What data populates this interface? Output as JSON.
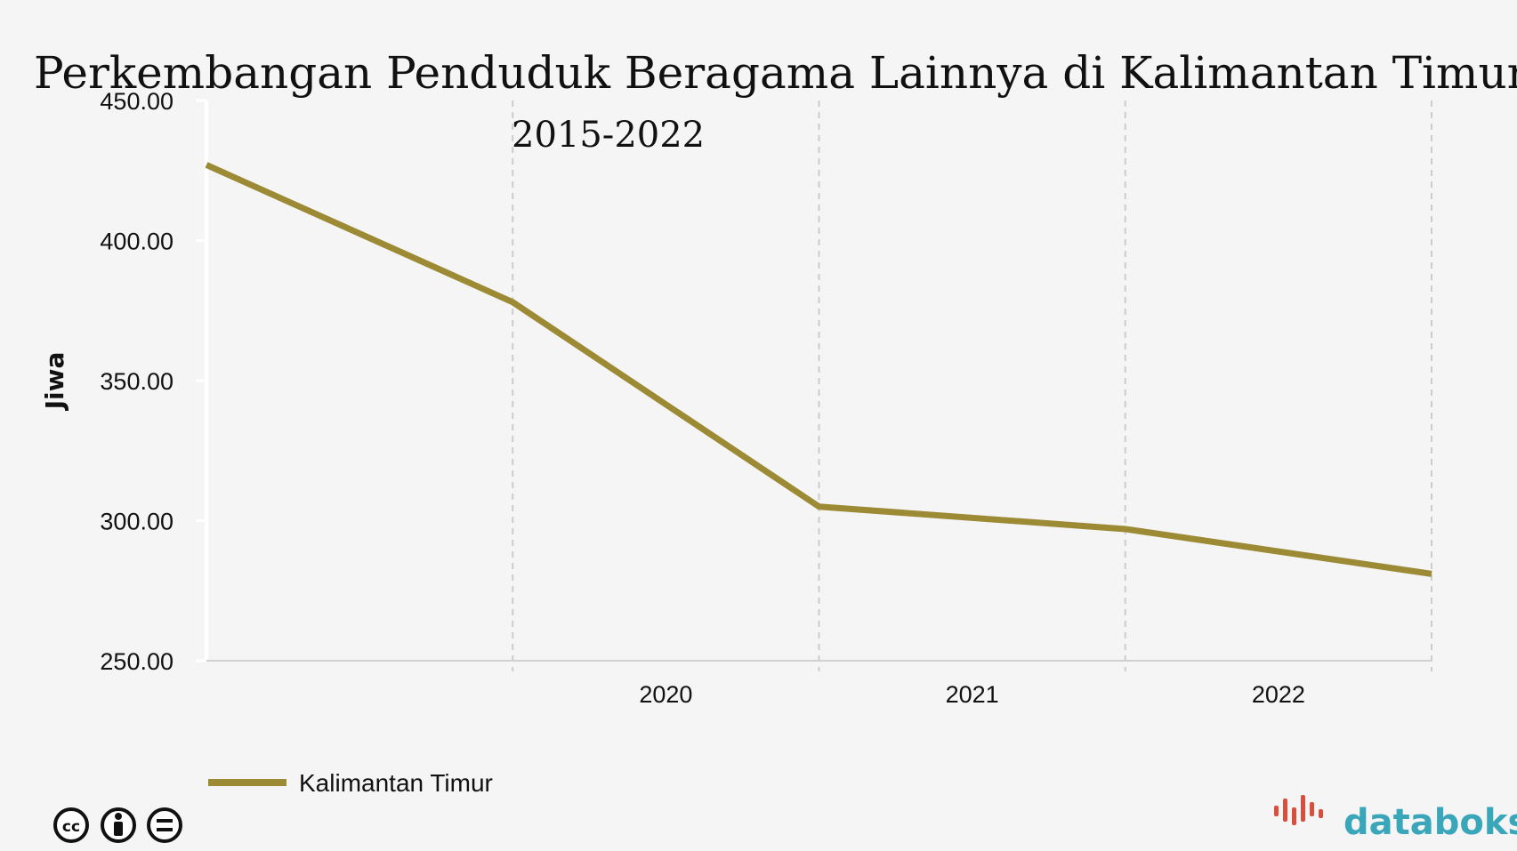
{
  "chart_data": {
    "type": "line",
    "title": "Perkembangan Penduduk Beragama Lainnya  di Kalimantan Timur",
    "subtitle": "2015-2022",
    "ylabel": "Jiwa",
    "xlabel": "",
    "ylim": [
      250,
      450
    ],
    "yticks": [
      "450.00",
      "400.00",
      "350.00",
      "300.00",
      "250.00"
    ],
    "ytick_values": [
      450,
      400,
      350,
      300,
      250
    ],
    "x_tick_labels": [
      "",
      "2020",
      "2021",
      "2022"
    ],
    "x": [
      "2015",
      "2020",
      "2020",
      "2021",
      "2022"
    ],
    "series": [
      {
        "name": "Kalimantan Timur",
        "values": [
          427,
          378,
          305,
          297,
          281
        ]
      }
    ],
    "grid": {
      "vertical": true,
      "dashed": true,
      "horizontal": false
    },
    "legend": {
      "position": "bottom-left"
    },
    "colors": {
      "line": "#9c8a35",
      "grid": "#cccccc",
      "axis": "#ffffff",
      "background": "#f5f5f5"
    }
  },
  "footer": {
    "license_icons": [
      "cc-icon",
      "by-icon",
      "nd-icon"
    ],
    "brand": "databoks",
    "brand_color": "#3aa6b9",
    "brand_mark_color": "#d94f3d"
  }
}
